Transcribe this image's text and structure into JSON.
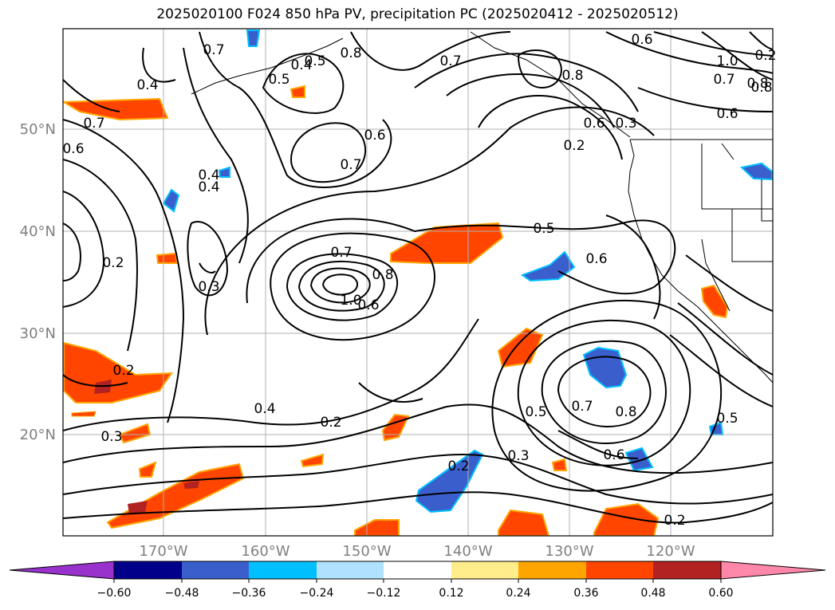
{
  "title": "2025020100 F024 850 hPa PV, precipitation PC (2025020412 - 2025020512)",
  "map": {
    "lat_labels": [
      "50°N",
      "40°N",
      "30°N",
      "20°N"
    ],
    "lon_labels": [
      "170°W",
      "160°W",
      "150°W",
      "140°W",
      "130°W",
      "120°W"
    ]
  },
  "contour_labels": [
    "0.7",
    "0.5",
    "0.4",
    "0.8",
    "0.4",
    "0.7",
    "0.6",
    "0.7",
    "0.6",
    "0.5",
    "0.6",
    "0.8",
    "0.6",
    "0.3",
    "0.2",
    "0.7",
    "1.0",
    "0.8",
    "0.4",
    "0.7",
    "0.6",
    "0.4",
    "0.2",
    "0.3",
    "0.5",
    "0.6",
    "0.7",
    "0.8",
    "1.0",
    "0.8",
    "0.6",
    "0.2",
    "0.3",
    "0.4",
    "0.2",
    "0.5",
    "0.7",
    "0.8",
    "0.6",
    "0.2",
    "0.3",
    "0.5",
    "0.2",
    "0.2"
  ],
  "colorbar": {
    "ticks": [
      "−0.60",
      "−0.48",
      "−0.36",
      "−0.24",
      "−0.12",
      "0.12",
      "0.24",
      "0.36",
      "0.48",
      "0.60"
    ],
    "colors": [
      "#9932cc",
      "#00008b",
      "#3a5fcd",
      "#00bfff",
      "#b0e2ff",
      "#ffffff",
      "#ffec8b",
      "#ffa500",
      "#ff4500",
      "#b22222",
      "#ff88aa"
    ]
  }
}
